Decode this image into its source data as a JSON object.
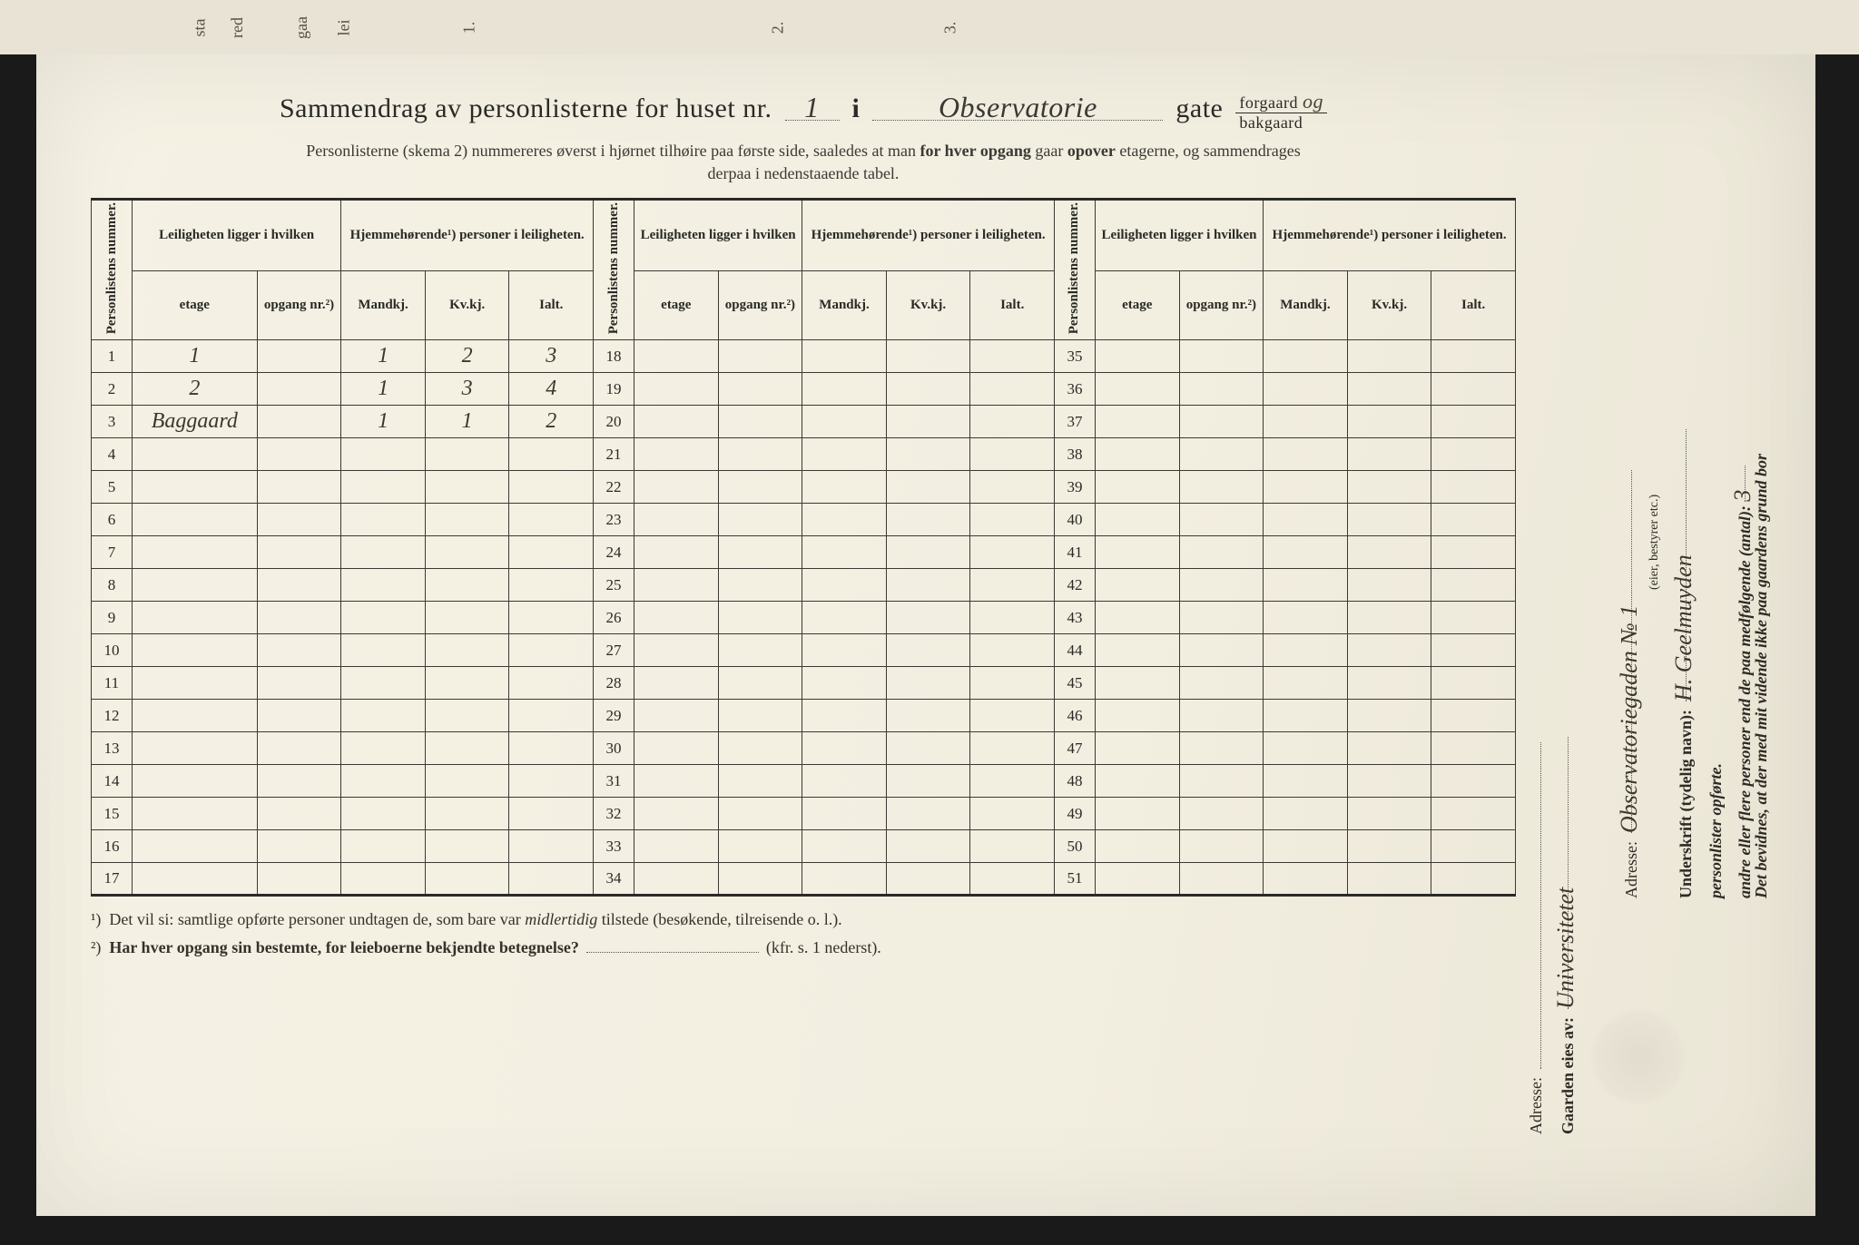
{
  "colors": {
    "paper": "#f2eee0",
    "ink": "#2a2a26",
    "hand": "#3d382e",
    "rule": "#3a3a34"
  },
  "top_markers": [
    "sta",
    "red",
    "gaa",
    "lei",
    "1.",
    "2.",
    "3."
  ],
  "title": {
    "prefix": "Sammendrag av personlisterne for huset nr.",
    "house_nr": "1",
    "sep": "i",
    "street": "Observatorie",
    "suffix": "gate",
    "forgaard": "forgaard",
    "og": "og",
    "bakgaard": "bakgaard"
  },
  "subtitle": "Personlisterne (skema 2) nummereres øverst i hjørnet tilhøire paa første side, saaledes at man for hver opgang gaar opover etagerne, og sammendrages derpaa i nedenstaaende tabel.",
  "headers": {
    "personlistens": "Personlistens nummer.",
    "leiligheten_group": "Leiligheten ligger i hvilken",
    "hjemme_group": "Hjemmehørende¹) personer i leiligheten.",
    "etage": "etage",
    "opgang": "opgang nr.²)",
    "mandkj": "Mandkj.",
    "kvkj": "Kv.kj.",
    "ialt": "Ialt."
  },
  "sections": [
    {
      "start": 1,
      "end": 17,
      "rows": [
        {
          "n": 1,
          "etage": "1",
          "opgang": "",
          "mand": "1",
          "kv": "2",
          "ialt": "3"
        },
        {
          "n": 2,
          "etage": "2",
          "opgang": "",
          "mand": "1",
          "kv": "3",
          "ialt": "4"
        },
        {
          "n": 3,
          "etage": "Baggaard",
          "opgang": "",
          "mand": "1",
          "kv": "1",
          "ialt": "2"
        },
        {
          "n": 4
        },
        {
          "n": 5
        },
        {
          "n": 6
        },
        {
          "n": 7
        },
        {
          "n": 8
        },
        {
          "n": 9
        },
        {
          "n": 10
        },
        {
          "n": 11
        },
        {
          "n": 12
        },
        {
          "n": 13
        },
        {
          "n": 14
        },
        {
          "n": 15
        },
        {
          "n": 16
        },
        {
          "n": 17
        }
      ]
    },
    {
      "start": 18,
      "end": 34,
      "rows": [
        {
          "n": 18
        },
        {
          "n": 19
        },
        {
          "n": 20
        },
        {
          "n": 21
        },
        {
          "n": 22
        },
        {
          "n": 23
        },
        {
          "n": 24
        },
        {
          "n": 25
        },
        {
          "n": 26
        },
        {
          "n": 27
        },
        {
          "n": 28
        },
        {
          "n": 29
        },
        {
          "n": 30
        },
        {
          "n": 31
        },
        {
          "n": 32
        },
        {
          "n": 33
        },
        {
          "n": 34
        }
      ]
    },
    {
      "start": 35,
      "end": 51,
      "rows": [
        {
          "n": 35
        },
        {
          "n": 36
        },
        {
          "n": 37
        },
        {
          "n": 38
        },
        {
          "n": 39
        },
        {
          "n": 40
        },
        {
          "n": 41
        },
        {
          "n": 42
        },
        {
          "n": 43
        },
        {
          "n": 44
        },
        {
          "n": 45
        },
        {
          "n": 46
        },
        {
          "n": 47
        },
        {
          "n": 48
        },
        {
          "n": 49
        },
        {
          "n": 50
        },
        {
          "n": 51
        }
      ]
    }
  ],
  "footnotes": {
    "f1": "¹) Det vil si: samtlige opførte personer undtagen de, som bare var midlertidig tilstede (besøkende, tilreisende o. l.).",
    "f2": "²) Har hver opgang sin bestemte, for leieboerne bekjendte betegnelse?",
    "f2_tail": "(kfr. s. 1 nederst)."
  },
  "sidebar": {
    "bevidnes_1": "Det bevidnes, at der med mit vidende ikke paa gaardens grund bor",
    "bevidnes_2": "andre eller flere personer end de paa medfølgende (antal):",
    "antal": "3",
    "bevidnes_3": "personlister opførte.",
    "underskrift_label": "Underskrift (tydelig navn):",
    "underskrift_value": "H. Geelmuyden",
    "role": "(eier, bestyrer etc.)",
    "adresse_label": "Adresse:",
    "adresse_value": "Observatoriegaden № 1",
    "gaarden_label": "Gaarden eies av:",
    "gaarden_value": "Universitetet"
  }
}
